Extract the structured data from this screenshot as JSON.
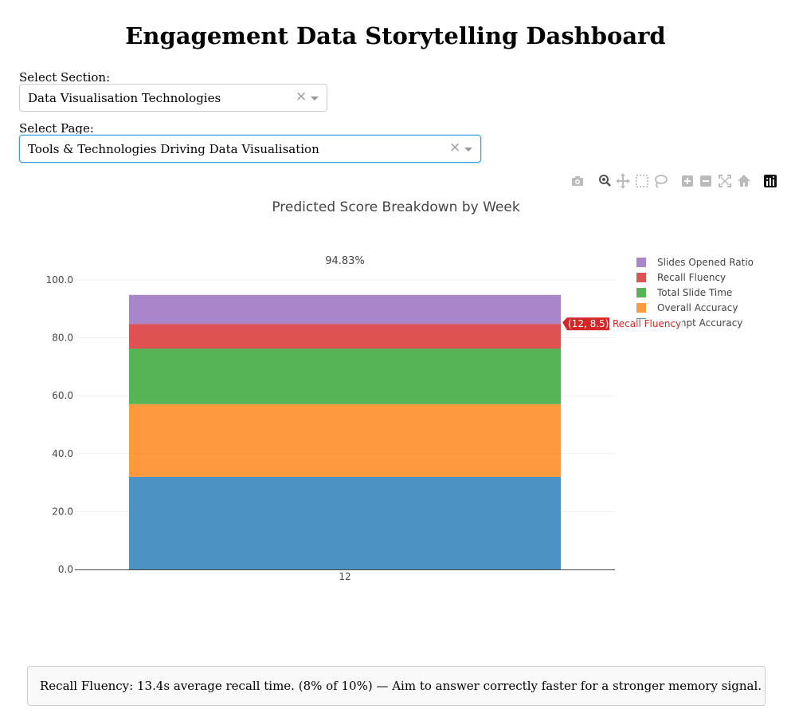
{
  "page": {
    "title": "Engagement Data Storytelling Dashboard"
  },
  "filters": {
    "section": {
      "label": "Select Section:",
      "value": "Data Visualisation Technologies",
      "clear": "×"
    },
    "page": {
      "label": "Select Page:",
      "value": "Tools & Technologies Driving Data Visualisation",
      "clear": "×"
    }
  },
  "modebar": {
    "buttons": [
      "camera-icon",
      "zoom-icon",
      "pan-icon",
      "box-select-icon",
      "lasso-select-icon",
      "zoom-in-icon",
      "zoom-out-icon",
      "autoscale-icon",
      "reset-axes-icon",
      "plotly-logo-icon"
    ]
  },
  "chart_data": {
    "type": "bar",
    "stacked": true,
    "title": "Predicted Score Breakdown by Week",
    "categories": [
      "12"
    ],
    "series": [
      {
        "name": "Attempt Accuracy",
        "values": [
          32.0
        ],
        "color": "#1f77b4"
      },
      {
        "name": "Overall Accuracy",
        "values": [
          25.1
        ],
        "color": "#ff7f0e"
      },
      {
        "name": "Total Slide Time",
        "values": [
          19.2
        ],
        "color": "#2ca02c"
      },
      {
        "name": "Recall Fluency",
        "values": [
          8.5
        ],
        "color": "#d62728"
      },
      {
        "name": "Slides Opened Ratio",
        "values": [
          10.03
        ],
        "color": "#9467bd"
      }
    ],
    "total_label": "94.83%",
    "ylim": [
      0,
      100
    ],
    "yticks": [
      "0.0",
      "20.0",
      "40.0",
      "60.0",
      "80.0",
      "100.0"
    ],
    "ytick_values": [
      0,
      20,
      40,
      60,
      80,
      100
    ],
    "legend": [
      "Slides Opened Ratio",
      "Recall Fluency",
      "Total Slide Time",
      "Overall Accuracy",
      "Attempt Accuracy"
    ],
    "legend_placement": "top-right",
    "grid": true,
    "hover": {
      "label": "(12, 8.5)",
      "series": "Recall Fluency"
    }
  },
  "footer": {
    "message": "Recall Fluency: 13.4s average recall time. (8% of 10%) — Aim to answer correctly faster for a stronger memory signal."
  }
}
